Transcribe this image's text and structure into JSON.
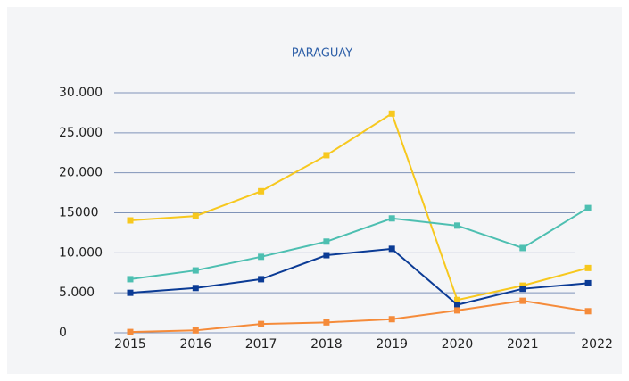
{
  "chart_data": {
    "type": "line",
    "title": "PARAGUAY",
    "categories": [
      "2015",
      "2016",
      "2017",
      "2018",
      "2019",
      "2020",
      "2021",
      "2022"
    ],
    "series": [
      {
        "color": "#f7c81e",
        "values": [
          14050,
          14600,
          17700,
          22200,
          27400,
          4100,
          5900,
          8100
        ]
      },
      {
        "color": "#4dbfb1",
        "values": [
          6700,
          7800,
          9500,
          11400,
          14300,
          13400,
          10600,
          15600
        ]
      },
      {
        "color": "#0b3b95",
        "values": [
          5000,
          5600,
          6700,
          9700,
          10500,
          3500,
          5500,
          6200
        ]
      },
      {
        "color": "#f58b3a",
        "values": [
          100,
          300,
          1100,
          1300,
          1700,
          2800,
          4000,
          2700
        ]
      }
    ],
    "ylim": [
      0,
      30000
    ],
    "yticks": [
      {
        "value": 0,
        "label": "0"
      },
      {
        "value": 5000,
        "label": "5.000"
      },
      {
        "value": 10000,
        "label": "10.000"
      },
      15000,
      {
        "value": 20000,
        "label": "20.000"
      },
      {
        "value": 25000,
        "label": "25.000"
      },
      {
        "value": 30000,
        "label": "30.000"
      }
    ],
    "grid": true
  }
}
